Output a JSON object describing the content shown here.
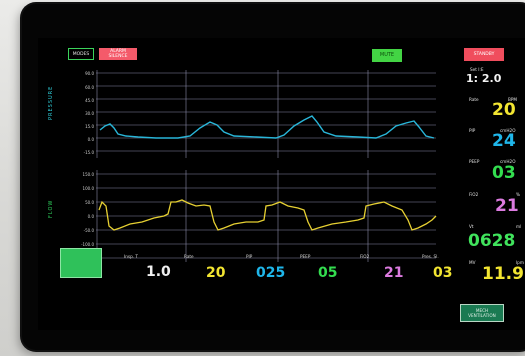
{
  "colors": {
    "pressure_trace": "#29b6d9",
    "flow_trace": "#e6d032",
    "grid": "#8a8aa8",
    "rate": "#f2e531",
    "pip": "#1fb6ea",
    "peep": "#33dd4f",
    "fio2": "#dc7be0",
    "vt": "#40e35c",
    "mv": "#f2e531"
  },
  "top_buttons": {
    "modes": "MODES",
    "alarm": "ALARM\nSILENCE",
    "mute": "MUTE",
    "standby": "STANDBY"
  },
  "graphs": {
    "pressure": {
      "axis_title": "PRESSURE",
      "ticks": [
        "90.0",
        "60.0",
        "45.0",
        "30.0",
        "15.0",
        "0.0",
        "-15.0"
      ]
    },
    "flow": {
      "axis_title": "FLOW",
      "ticks": [
        "150.0",
        "100.0",
        "50.0",
        "0.0",
        "-50.0",
        "-100.0",
        "-150.0"
      ]
    }
  },
  "right_panel": {
    "ie_label": "Set I:E",
    "ie_value": "1: 2.0",
    "rate_label": "Rate",
    "rate_unit": "BPM",
    "rate_value": "20",
    "pip_label": "PIP",
    "pip_unit": "cmH2O",
    "pip_value": "24",
    "peep_label": "PEEP",
    "peep_unit": "cmH2O",
    "peep_value": "03",
    "fio2_label": "FiO2",
    "fio2_unit": "%",
    "fio2_value": "21",
    "vt_label": "Vt",
    "vt_unit": "ml",
    "vt_value": "0628",
    "mv_label": "MV",
    "mv_unit": "lpm",
    "mv_value": "11.9",
    "mech_button": "MECH\nVENTILATION"
  },
  "bottom_bar": {
    "insp_t_label": "Insp. T",
    "insp_t_value": "1.0",
    "rate_label": "Rate",
    "rate_value": "20",
    "pip_label": "PIP",
    "pip_value": "025",
    "peep_label": "PEEP",
    "peep_value": "05",
    "fio2_label": "FiO2",
    "fio2_value": "21",
    "pres_sl_label": "Pres. Sl.",
    "pres_sl_value": "03"
  }
}
